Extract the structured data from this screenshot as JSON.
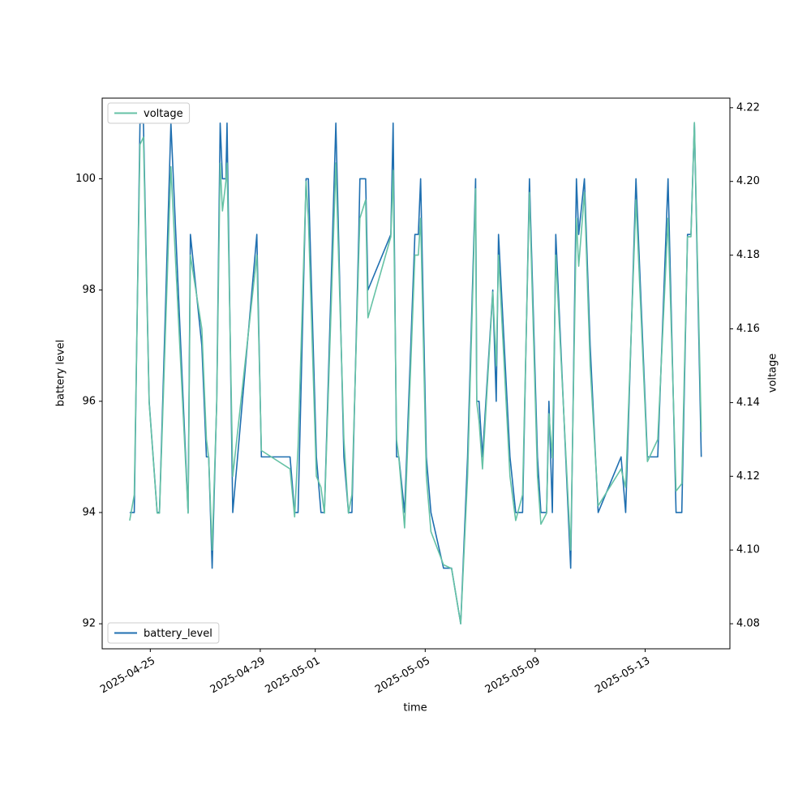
{
  "chart_data": {
    "type": "line",
    "xlabel": "time",
    "ylabel": "battery level",
    "y2label": "voltage",
    "x": [
      "2025-04-24T06:00",
      "2025-04-24T10:00",
      "2025-04-24T15:00",
      "2025-04-24T18:00",
      "2025-04-24T23:00",
      "2025-04-25T06:00",
      "2025-04-25T08:00",
      "2025-04-25T18:00",
      "2025-04-26T09:00",
      "2025-04-26T11:00",
      "2025-04-26T21:00",
      "2025-04-27T01:00",
      "2025-04-27T03:00",
      "2025-04-27T06:00",
      "2025-04-27T10:00",
      "2025-04-27T13:00",
      "2025-04-27T15:00",
      "2025-04-27T18:00",
      "2025-04-27T19:00",
      "2025-04-28T00:00",
      "2025-04-28T21:00",
      "2025-04-29T00:00",
      "2025-04-29T01:00",
      "2025-04-30T02:00",
      "2025-04-30T06:00",
      "2025-04-30T09:00",
      "2025-04-30T16:00",
      "2025-04-30T18:00",
      "2025-05-01T01:00",
      "2025-05-01T05:00",
      "2025-05-01T08:00",
      "2025-05-01T18:00",
      "2025-05-02T01:00",
      "2025-05-02T05:00",
      "2025-05-02T08:00",
      "2025-05-02T14:00",
      "2025-05-02T15:00",
      "2025-05-02T20:00",
      "2025-05-02T22:00",
      "2025-05-03T18:00",
      "2025-05-03T20:00",
      "2025-05-03T23:00",
      "2025-05-04T01:00",
      "2025-05-04T06:00",
      "2025-05-04T15:00",
      "2025-05-04T18:00",
      "2025-05-04T20:00",
      "2025-05-05T01:00",
      "2025-05-05T05:00",
      "2025-05-05T16:00",
      "2025-05-05T23:00",
      "2025-05-06T07:00",
      "2025-05-06T13:00",
      "2025-05-06T20:00",
      "2025-05-06T21:00",
      "2025-05-06T23:00",
      "2025-05-07T02:00",
      "2025-05-07T11:00",
      "2025-05-07T14:00",
      "2025-05-07T16:00",
      "2025-05-08T02:00",
      "2025-05-08T07:00",
      "2025-05-08T13:00",
      "2025-05-08T19:00",
      "2025-05-09T02:00",
      "2025-05-09T05:00",
      "2025-05-09T10:00",
      "2025-05-09T12:00",
      "2025-05-09T15:00",
      "2025-05-09T18:00",
      "2025-05-10T07:00",
      "2025-05-10T12:00",
      "2025-05-10T14:00",
      "2025-05-10T19:00",
      "2025-05-11T00:00",
      "2025-05-11T07:00",
      "2025-05-12T03:00",
      "2025-05-12T07:00",
      "2025-05-12T16:00",
      "2025-05-13T02:00",
      "2025-05-13T11:00",
      "2025-05-13T20:00",
      "2025-05-14T03:00",
      "2025-05-14T08:00",
      "2025-05-14T13:00",
      "2025-05-14T16:00",
      "2025-05-14T19:00",
      "2025-05-15T01:00"
    ],
    "series": [
      {
        "name": "battery_level",
        "color": "#1f6fb0",
        "legend": "lower left",
        "values": [
          94,
          94,
          101,
          101,
          96,
          94,
          94,
          101,
          94,
          99,
          97,
          95,
          95,
          93,
          96,
          101,
          100,
          100,
          101,
          94,
          99,
          96,
          95,
          95,
          94,
          94,
          100,
          100,
          95,
          94,
          94,
          101,
          95,
          94,
          94,
          99,
          100,
          100,
          98,
          99,
          101,
          95,
          95,
          94,
          99,
          99,
          100,
          95,
          94,
          93,
          93,
          92,
          95,
          100,
          96,
          96,
          95,
          98,
          96,
          99,
          95,
          94,
          94,
          100,
          95,
          94,
          94,
          96,
          94,
          99,
          93,
          100,
          99,
          100,
          97,
          94,
          95,
          94,
          100,
          95,
          95,
          100,
          94,
          94,
          99,
          99,
          101,
          95
        ]
      },
      {
        "name": "voltage",
        "color": "#66c2a5",
        "axis": "y2",
        "legend": "upper left",
        "values": [
          4.108,
          4.115,
          4.21,
          4.212,
          4.14,
          4.11,
          4.11,
          4.204,
          4.11,
          4.18,
          4.16,
          4.13,
          4.125,
          4.1,
          4.14,
          4.205,
          4.192,
          4.2,
          4.205,
          4.12,
          4.18,
          4.14,
          4.127,
          4.122,
          4.109,
          4.128,
          4.2,
          4.19,
          4.12,
          4.117,
          4.11,
          4.205,
          4.13,
          4.11,
          4.115,
          4.18,
          4.19,
          4.195,
          4.163,
          4.185,
          4.203,
          4.13,
          4.125,
          4.106,
          4.18,
          4.18,
          4.19,
          4.12,
          4.105,
          4.096,
          4.095,
          4.08,
          4.12,
          4.198,
          4.14,
          4.135,
          4.122,
          4.17,
          4.15,
          4.18,
          4.12,
          4.108,
          4.115,
          4.197,
          4.12,
          4.107,
          4.11,
          4.137,
          4.125,
          4.18,
          4.1,
          4.19,
          4.177,
          4.197,
          4.15,
          4.112,
          4.122,
          4.117,
          4.195,
          4.124,
          4.13,
          4.19,
          4.116,
          4.118,
          4.185,
          4.185,
          4.216,
          4.132
        ]
      }
    ],
    "xlim": [
      "2025-04-23T06:00",
      "2025-05-16T02:00"
    ],
    "xticks": [
      "2025-04-25",
      "2025-04-29",
      "2025-05-01",
      "2025-05-05",
      "2025-05-09",
      "2025-05-13"
    ],
    "ylim": [
      91.55,
      101.45
    ],
    "yticks": [
      92,
      94,
      96,
      98,
      100
    ],
    "y2lim": [
      4.0732,
      4.2226
    ],
    "y2ticks": [
      4.08,
      {
        "value": 4.1,
        "label": "4.10"
      },
      4.12,
      4.14,
      4.16,
      4.18,
      {
        "value": 4.2,
        "label": "4.20"
      },
      4.22
    ]
  }
}
